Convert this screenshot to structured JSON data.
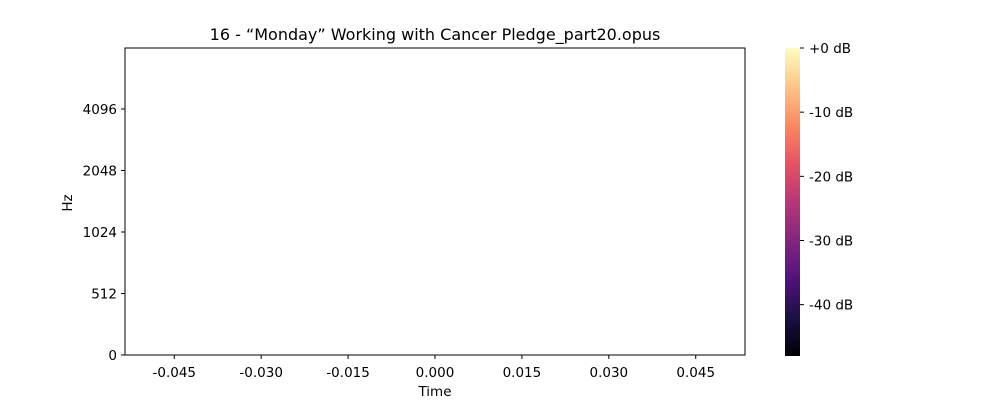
{
  "chart_data": {
    "type": "heatmap",
    "title": "16 - “Monday” Working with Cancer Pledge_part20.opus",
    "xlabel": "Time",
    "ylabel": "Hz",
    "xlim": [
      -0.0535,
      0.0535
    ],
    "x_ticks": [
      {
        "value": -0.045,
        "label": "-0.045"
      },
      {
        "value": -0.03,
        "label": "-0.030"
      },
      {
        "value": -0.015,
        "label": "-0.015"
      },
      {
        "value": 0.0,
        "label": "0.000"
      },
      {
        "value": 0.015,
        "label": "0.015"
      },
      {
        "value": 0.03,
        "label": "0.030"
      },
      {
        "value": 0.045,
        "label": "0.045"
      }
    ],
    "y_scale": "symlog",
    "y_ticks": [
      {
        "value": 0,
        "label": "0"
      },
      {
        "value": 512,
        "label": "512"
      },
      {
        "value": 1024,
        "label": "1024"
      },
      {
        "value": 2048,
        "label": "2048"
      },
      {
        "value": 4096,
        "label": "4096"
      }
    ],
    "values": [],
    "colorbar": {
      "colormap": "magma",
      "range_db": [
        -48,
        0
      ],
      "ticks": [
        {
          "value": 0,
          "label": "+0 dB"
        },
        {
          "value": -10,
          "label": "-10 dB"
        },
        {
          "value": -20,
          "label": "-20 dB"
        },
        {
          "value": -30,
          "label": "-30 dB"
        },
        {
          "value": -40,
          "label": "-40 dB"
        }
      ],
      "stops": [
        "#000004",
        "#1c1044",
        "#51127c",
        "#822681",
        "#b73779",
        "#e75263",
        "#fc8961",
        "#fec488",
        "#fcfdbf"
      ]
    },
    "grid": false,
    "legend": "none"
  }
}
